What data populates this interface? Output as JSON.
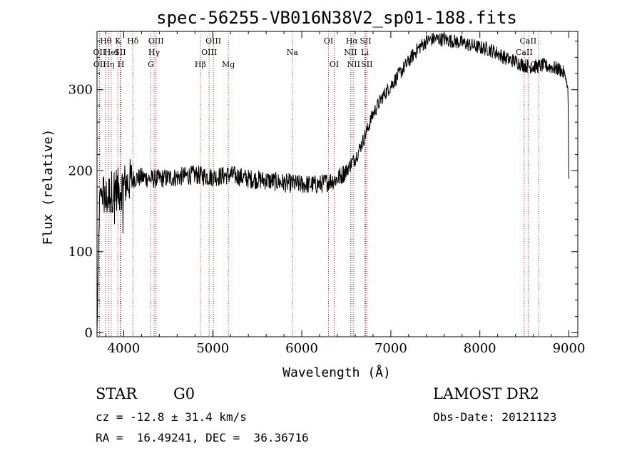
{
  "chart_data": {
    "type": "line",
    "title": "spec-56255-VB016N38V2_sp01-188.fits",
    "xlabel": "Wavelength (Å)",
    "ylabel": "Flux (relative)",
    "xlim": [
      3700,
      9100
    ],
    "ylim": [
      -5,
      372
    ],
    "xticks": [
      4000,
      5000,
      6000,
      7000,
      8000,
      9000
    ],
    "yticks": [
      0,
      100,
      200,
      300
    ],
    "spectrum_anchors": {
      "x": [
        3700,
        3710,
        3730,
        3760,
        3800,
        3850,
        3900,
        3950,
        4000,
        4100,
        4200,
        4300,
        4400,
        4600,
        4800,
        5000,
        5200,
        5400,
        5600,
        5800,
        6000,
        6200,
        6400,
        6500,
        6560,
        6600,
        6700,
        6800,
        6900,
        7000,
        7100,
        7200,
        7300,
        7400,
        7500,
        7600,
        7700,
        7800,
        7900,
        8000,
        8100,
        8200,
        8300,
        8400,
        8500,
        8600,
        8700,
        8800,
        8900,
        8960,
        8990,
        9000
      ],
      "y": [
        0,
        60,
        170,
        175,
        165,
        172,
        180,
        175,
        182,
        190,
        192,
        190,
        190,
        192,
        195,
        192,
        195,
        190,
        188,
        185,
        183,
        183,
        190,
        200,
        210,
        215,
        240,
        270,
        290,
        305,
        320,
        335,
        350,
        360,
        363,
        362,
        360,
        358,
        355,
        352,
        350,
        345,
        338,
        335,
        330,
        328,
        330,
        328,
        325,
        318,
        300,
        190
      ]
    },
    "spectral_lines": [
      {
        "name": "Hθ",
        "wavelength": 3798,
        "row": 0
      },
      {
        "name": "OII",
        "wavelength": 3727,
        "row": 1
      },
      {
        "name": "OII",
        "wavelength": 3730,
        "row": 2
      },
      {
        "name": "K",
        "wavelength": 3934,
        "row": 0
      },
      {
        "name": "H",
        "wavelength": 3969,
        "row": 2
      },
      {
        "name": "Hδ",
        "wavelength": 4102,
        "row": 0
      },
      {
        "name": "OIII",
        "wavelength": 4363,
        "row": 0
      },
      {
        "name": "Hγ",
        "wavelength": 4341,
        "row": 1
      },
      {
        "name": "G",
        "wavelength": 4305,
        "row": 2
      },
      {
        "name": "OIII",
        "wavelength": 5007,
        "row": 0
      },
      {
        "name": "OIII",
        "wavelength": 4959,
        "row": 1
      },
      {
        "name": "Hβ",
        "wavelength": 4861,
        "row": 2
      },
      {
        "name": "Mg",
        "wavelength": 5175,
        "row": 2
      },
      {
        "name": "Na",
        "wavelength": 5894,
        "row": 1
      },
      {
        "name": "OI",
        "wavelength": 6300,
        "row": 0
      },
      {
        "name": "OI",
        "wavelength": 6364,
        "row": 2
      },
      {
        "name": "Hα",
        "wavelength": 6563,
        "row": 0
      },
      {
        "name": "SII",
        "wavelength": 6716,
        "row": 0
      },
      {
        "name": "NII",
        "wavelength": 6548,
        "row": 1
      },
      {
        "name": "Li",
        "wavelength": 6708,
        "row": 1
      },
      {
        "name": "NII",
        "wavelength": 6583,
        "row": 2
      },
      {
        "name": "SII",
        "wavelength": 6731,
        "row": 2
      },
      {
        "name": "CaII",
        "wavelength": 8542,
        "row": 0
      },
      {
        "name": "CaII",
        "wavelength": 8498,
        "row": 1
      },
      {
        "name": "CaII",
        "wavelength": 8662,
        "row": 2
      }
    ],
    "hidden_line_labels": [
      {
        "name": "Hε",
        "wavelength": 3889,
        "row": 1
      },
      {
        "name": "HeI",
        "wavelength": 3889,
        "row": 1
      },
      {
        "name": "SII",
        "wavelength": 4072,
        "row": 1
      },
      {
        "name": "Hη",
        "wavelength": 3835,
        "row": 2
      }
    ],
    "line_label_overrides": [
      {
        "text": "HeI",
        "wavelength": 3860,
        "row": 1
      },
      {
        "text": "SII",
        "wavelength": 3960,
        "row": 1
      },
      {
        "text": "Hη",
        "wavelength": 3830,
        "row": 2
      }
    ]
  },
  "info": {
    "class": "STAR",
    "subclass": "G0",
    "survey": "LAMOST DR2",
    "redshift": "cz = -12.8 ± 31.4 km/s",
    "obs_date": "Obs-Date: 20121123",
    "coords": "RA =  16.49241, DEC =  36.36716"
  },
  "colors": {
    "spectrum": "#000000",
    "line_marker": "#b22222"
  }
}
